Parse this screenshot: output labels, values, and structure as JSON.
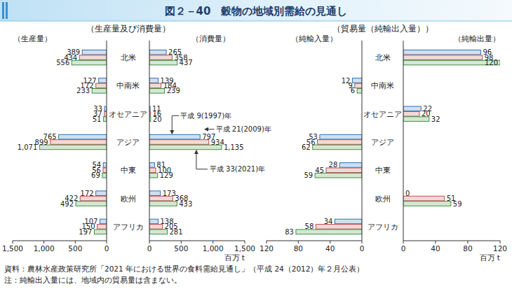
{
  "title": "図２－40　穀物の地域別需給の見通し",
  "panel_titles": [
    "（生産量及び消費量）",
    "（貿易量（純輸出入量））"
  ],
  "source": "資料：農林水産政策研究所「2021 年における世界の食料需給見通し」（平成 24（2012）年２月公表）",
  "note": "注：純輸出入量には、地域内の貿易量は含まない。",
  "chart_data": [
    {
      "type": "bar",
      "orientation": "horizontal",
      "title": "（生産量）",
      "categories": [
        "北米",
        "中南米",
        "オセアニア",
        "アジア",
        "中東",
        "欧州",
        "アフリカ"
      ],
      "xlim": [
        1500,
        0
      ],
      "xticks": [
        {
          "value": 1500,
          "label": "1,500"
        },
        {
          "value": 1000,
          "label": "1,000"
        },
        500,
        0
      ],
      "data_labels": true,
      "series": [
        {
          "color": "#2e6fb7",
          "values": [
            389,
            127,
            33,
            765,
            54,
            172,
            107
          ]
        },
        {
          "color": "#c0504d",
          "values": [
            434,
            172,
            37,
            899,
            56,
            422,
            150
          ]
        },
        {
          "color": "#3d9140",
          "values": [
            556,
            233,
            51,
            1071,
            69,
            492,
            197
          ],
          "value_labels": [
            "556",
            "233",
            "51",
            "1,071",
            "69",
            "492",
            "197"
          ]
        }
      ]
    },
    {
      "type": "bar",
      "orientation": "horizontal",
      "title": "（消費量）",
      "xlabel": "百万 t",
      "categories": [
        "北米",
        "中南米",
        "オセアニア",
        "アジア",
        "中東",
        "欧州",
        "アフリカ"
      ],
      "xlim": [
        0,
        1500
      ],
      "xticks": [
        0,
        500,
        {
          "value": 1000,
          "label": "1,000"
        },
        {
          "value": 1500,
          "label": "1,500"
        }
      ],
      "data_labels": true,
      "series": [
        {
          "name": "平成 9(1997)年",
          "color": "#2e6fb7",
          "values": [
            265,
            139,
            11,
            797,
            81,
            173,
            138
          ]
        },
        {
          "name": "平成 21(2009)年",
          "color": "#c0504d",
          "values": [
            358,
            184,
            16,
            934,
            100,
            368,
            205
          ]
        },
        {
          "name": "平成 33(2021)年",
          "color": "#3d9140",
          "values": [
            437,
            239,
            20,
            1135,
            129,
            433,
            281
          ],
          "value_labels": [
            "437",
            "239",
            "20",
            "1,135",
            "129",
            "433",
            "281"
          ]
        }
      ]
    },
    {
      "type": "bar",
      "orientation": "horizontal",
      "title": "（純輸入量）",
      "categories": [
        "北米",
        "中南米",
        "オセアニア",
        "アジア",
        "中東",
        "欧州",
        "アフリカ"
      ],
      "xlim": [
        120,
        0
      ],
      "xticks": [
        120,
        80,
        40,
        0
      ],
      "data_labels": true,
      "series": [
        {
          "color": "#2e6fb7",
          "values": [
            null,
            12,
            null,
            53,
            28,
            null,
            34
          ]
        },
        {
          "color": "#c0504d",
          "values": [
            null,
            9,
            null,
            56,
            45,
            null,
            58
          ]
        },
        {
          "color": "#3d9140",
          "values": [
            null,
            6,
            null,
            62,
            59,
            null,
            83
          ]
        }
      ]
    },
    {
      "type": "bar",
      "orientation": "horizontal",
      "title": "（純輸出量）",
      "xlabel": "百万 t",
      "categories": [
        "北米",
        "中南米",
        "オセアニア",
        "アジア",
        "中東",
        "欧州",
        "アフリカ"
      ],
      "xlim": [
        0,
        120
      ],
      "xticks": [
        0,
        40,
        80,
        120
      ],
      "data_labels": true,
      "series": [
        {
          "color": "#2e6fb7",
          "values": [
            96,
            null,
            22,
            null,
            null,
            0,
            null
          ]
        },
        {
          "color": "#c0504d",
          "values": [
            98,
            null,
            20,
            null,
            null,
            51,
            null
          ]
        },
        {
          "color": "#3d9140",
          "values": [
            120,
            null,
            32,
            null,
            null,
            59,
            null
          ]
        }
      ]
    }
  ]
}
